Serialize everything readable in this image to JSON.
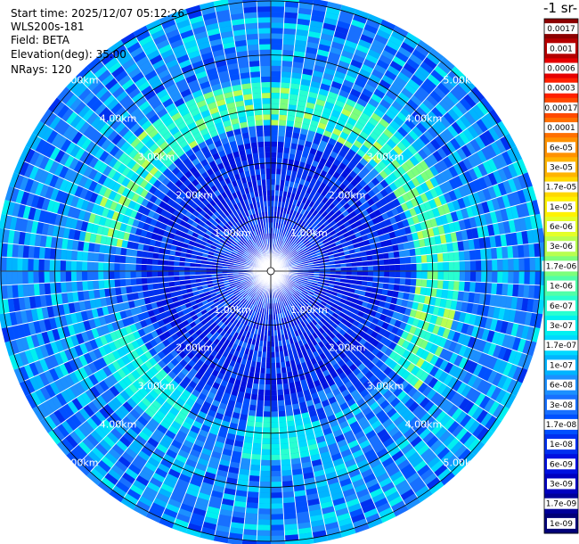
{
  "info": {
    "start_time": "Start time: 2025/12/07 05:12:26",
    "instrument": "WLS200s-181",
    "field": "Field: BETA",
    "elevation": "Elevation(deg): 35.00",
    "nrays": "NRays: 120"
  },
  "chart_data": {
    "type": "heatmap",
    "projection": "polar-ppi",
    "field": "BETA",
    "nrays": 120,
    "elevation_deg": 35.0,
    "max_range_km": 5.0,
    "range_rings_km": [
      1,
      2,
      3,
      4,
      5
    ],
    "ring_labels": [
      "1.00km",
      "2.00km",
      "3.00km",
      "4.00km",
      "5.00km"
    ],
    "colorbar": {
      "title_fragment": "-1 sr-",
      "scale": "log",
      "levels": [
        {
          "label": "0.0017",
          "color": "#8c0000"
        },
        {
          "label": "0.001",
          "color": "#b40000"
        },
        {
          "label": "0.0006",
          "color": "#e60000"
        },
        {
          "label": "0.0003",
          "color": "#ff2000"
        },
        {
          "label": "0.00017",
          "color": "#ff4a00"
        },
        {
          "label": "0.0001",
          "color": "#ff7000"
        },
        {
          "label": "6e-05",
          "color": "#ff9200"
        },
        {
          "label": "3e-05",
          "color": "#ffb400"
        },
        {
          "label": "1.7e-05",
          "color": "#ffd800"
        },
        {
          "label": "1e-05",
          "color": "#fff200"
        },
        {
          "label": "6e-06",
          "color": "#e4ff28"
        },
        {
          "label": "3e-06",
          "color": "#b8ff50"
        },
        {
          "label": "1.7e-06",
          "color": "#7cff7c"
        },
        {
          "label": "1e-06",
          "color": "#50ffa8"
        },
        {
          "label": "6e-07",
          "color": "#28ffd0"
        },
        {
          "label": "3e-07",
          "color": "#00f0f0"
        },
        {
          "label": "1.7e-07",
          "color": "#00d8ff"
        },
        {
          "label": "1e-07",
          "color": "#00b4ff"
        },
        {
          "label": "6e-08",
          "color": "#1c90ff"
        },
        {
          "label": "3e-08",
          "color": "#1870ff"
        },
        {
          "label": "1.7e-08",
          "color": "#0050ff"
        },
        {
          "label": "1e-08",
          "color": "#0030f0"
        },
        {
          "label": "6e-09",
          "color": "#0010e0"
        },
        {
          "label": "3e-09",
          "color": "#0000c0"
        },
        {
          "label": "1.7e-09",
          "color": "#00009a"
        },
        {
          "label": "1e-09",
          "color": "#000078"
        }
      ]
    },
    "aerosol_band_range_km": [
      2.9,
      3.5
    ]
  }
}
